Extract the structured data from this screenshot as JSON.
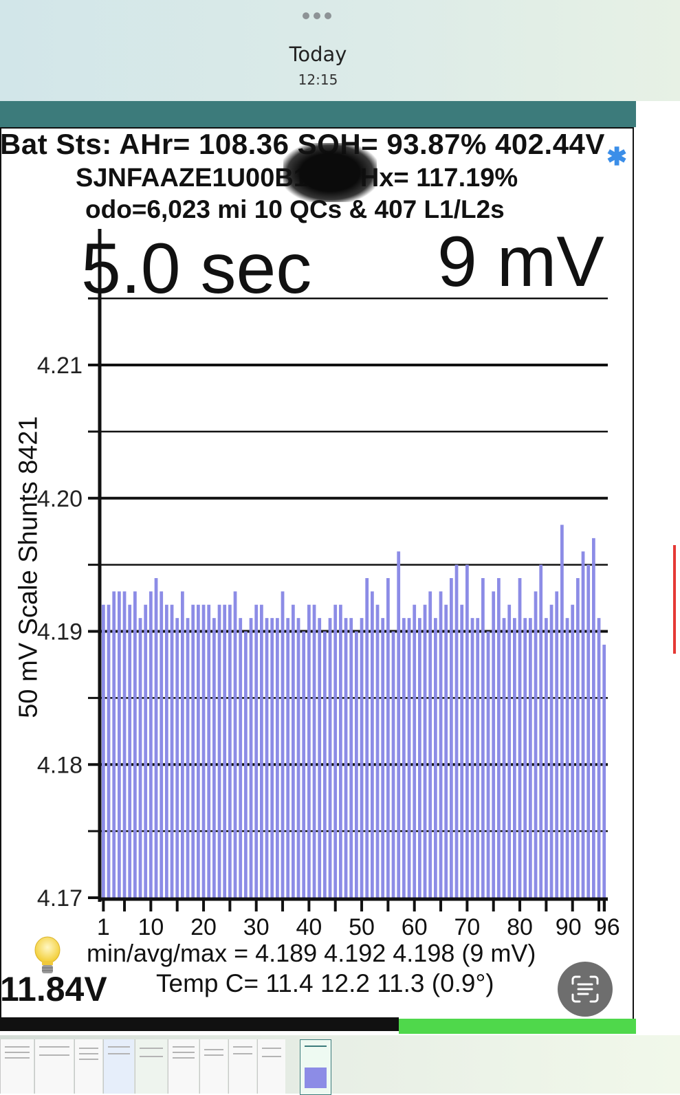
{
  "topbar": {
    "title": "Today",
    "time": "12:15"
  },
  "header": {
    "line1": "Bat Sts: AHr= 108.36 SOH= 93.87% 402.44V",
    "line2": "SJNFAAZE1U00B13F4   Hx= 117.19%",
    "line3": "odo=6,023 mi 10 QCs & 407 L1/L2s"
  },
  "sample_interval": "5.0 sec",
  "spread": "9 mV",
  "y_axis_label": "50 mV Scale   Shunts 8421",
  "chart_data": {
    "type": "bar",
    "x_tick_labels": [
      "1",
      "10",
      "20",
      "30",
      "40",
      "50",
      "60",
      "70",
      "80",
      "90",
      "96"
    ],
    "y_tick_labels": [
      "4.21",
      "4.20",
      "4.19",
      "4.18",
      "4.17"
    ],
    "ylim": [
      4.17,
      4.215
    ],
    "bar_color": "#8c8ce6",
    "grid": true,
    "cells": [
      1,
      2,
      3,
      4,
      5,
      6,
      7,
      8,
      9,
      10,
      11,
      12,
      13,
      14,
      15,
      16,
      17,
      18,
      19,
      20,
      21,
      22,
      23,
      24,
      25,
      26,
      27,
      28,
      29,
      30,
      31,
      32,
      33,
      34,
      35,
      36,
      37,
      38,
      39,
      40,
      41,
      42,
      43,
      44,
      45,
      46,
      47,
      48,
      49,
      50,
      51,
      52,
      53,
      54,
      55,
      56,
      57,
      58,
      59,
      60,
      61,
      62,
      63,
      64,
      65,
      66,
      67,
      68,
      69,
      70,
      71,
      72,
      73,
      74,
      75,
      76,
      77,
      78,
      79,
      80,
      81,
      82,
      83,
      84,
      85,
      86,
      87,
      88,
      89,
      90,
      91,
      92,
      93,
      94,
      95,
      96
    ],
    "values": [
      4.192,
      4.192,
      4.193,
      4.193,
      4.193,
      4.192,
      4.193,
      4.191,
      4.192,
      4.193,
      4.194,
      4.193,
      4.192,
      4.192,
      4.191,
      4.193,
      4.191,
      4.192,
      4.192,
      4.192,
      4.192,
      4.191,
      4.192,
      4.192,
      4.192,
      4.193,
      4.191,
      4.19,
      4.191,
      4.192,
      4.192,
      4.191,
      4.191,
      4.191,
      4.193,
      4.191,
      4.192,
      4.191,
      4.19,
      4.192,
      4.192,
      4.191,
      4.19,
      4.191,
      4.192,
      4.192,
      4.191,
      4.191,
      4.19,
      4.191,
      4.194,
      4.193,
      4.192,
      4.191,
      4.194,
      4.19,
      4.196,
      4.191,
      4.191,
      4.192,
      4.191,
      4.192,
      4.193,
      4.191,
      4.193,
      4.192,
      4.194,
      4.195,
      4.192,
      4.195,
      4.191,
      4.191,
      4.194,
      4.19,
      4.193,
      4.194,
      4.191,
      4.192,
      4.191,
      4.194,
      4.191,
      4.191,
      4.193,
      4.195,
      4.191,
      4.192,
      4.193,
      4.198,
      4.191,
      4.192,
      4.194,
      4.196,
      4.195,
      4.197,
      4.191,
      4.189
    ]
  },
  "stats": {
    "minmax": "min/avg/max = 4.189 4.192 4.198  (9 mV)",
    "temp": "Temp C= 11.4  12.2  11.3  (0.9°)",
    "aux_voltage": "11.84V"
  }
}
